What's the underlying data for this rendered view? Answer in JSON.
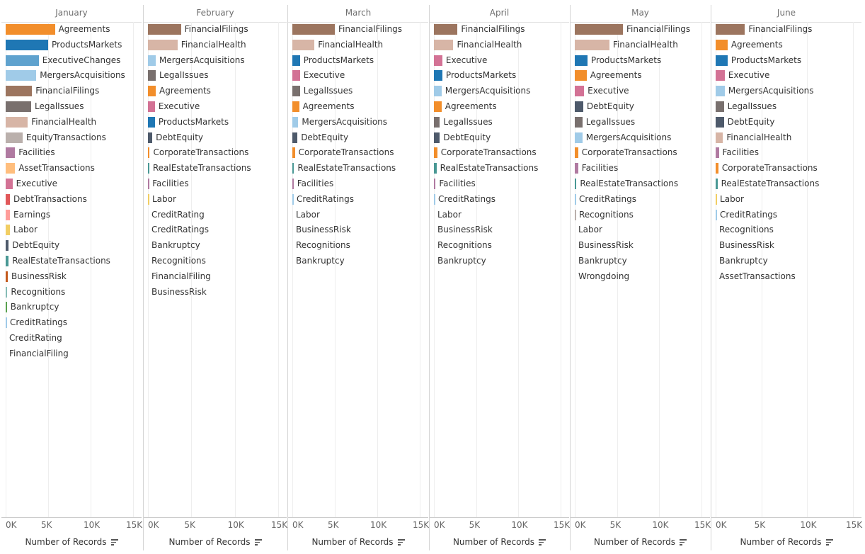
{
  "chart_data": {
    "type": "bar",
    "orientation": "horizontal",
    "xlabel": "Number of Records",
    "xlim": [
      0,
      15000
    ],
    "xticks": [
      "0K",
      "5K",
      "10K",
      "15K"
    ],
    "grid": true,
    "panels": [
      {
        "title": "January",
        "bars": [
          {
            "label": "Agreements",
            "value": 5800,
            "color": "#f28e2b"
          },
          {
            "label": "ProductsMarkets",
            "value": 5000,
            "color": "#1f77b4"
          },
          {
            "label": "ExecutiveChanges",
            "value": 3900,
            "color": "#5fa2ce"
          },
          {
            "label": "MergersAcquisitions",
            "value": 3600,
            "color": "#a0cbe8"
          },
          {
            "label": "FinancialFilings",
            "value": 3100,
            "color": "#9c755f"
          },
          {
            "label": "LegalIssues",
            "value": 3000,
            "color": "#79706e"
          },
          {
            "label": "FinancialHealth",
            "value": 2600,
            "color": "#d7b5a6"
          },
          {
            "label": "EquityTransactions",
            "value": 2000,
            "color": "#bab0ac"
          },
          {
            "label": "Facilities",
            "value": 1100,
            "color": "#b07aa1"
          },
          {
            "label": "AssetTransactions",
            "value": 1100,
            "color": "#ffbe7d"
          },
          {
            "label": "Executive",
            "value": 800,
            "color": "#d37295"
          },
          {
            "label": "DebtTransactions",
            "value": 500,
            "color": "#e15759"
          },
          {
            "label": "Earnings",
            "value": 500,
            "color": "#ff9d9a"
          },
          {
            "label": "Labor",
            "value": 500,
            "color": "#f1ce63"
          },
          {
            "label": "DebtEquity",
            "value": 350,
            "color": "#4e5a6b"
          },
          {
            "label": "RealEstateTransactions",
            "value": 350,
            "color": "#499894"
          },
          {
            "label": "BusinessRisk",
            "value": 250,
            "color": "#c35a1d"
          },
          {
            "label": "Recognitions",
            "value": 200,
            "color": "#86bcb6"
          },
          {
            "label": "Bankruptcy",
            "value": 150,
            "color": "#59a14f"
          },
          {
            "label": "CreditRatings",
            "value": 80,
            "color": "#a0cbe8"
          },
          {
            "label": "CreditRating",
            "value": 0,
            "color": "#bab0ac"
          },
          {
            "label": "FinancialFiling",
            "value": 0,
            "color": "#bab0ac"
          }
        ]
      },
      {
        "title": "February",
        "bars": [
          {
            "label": "FinancialFilings",
            "value": 3800,
            "color": "#9c755f"
          },
          {
            "label": "FinancialHealth",
            "value": 3400,
            "color": "#d7b5a6"
          },
          {
            "label": "MergersAcquisitions",
            "value": 900,
            "color": "#a0cbe8"
          },
          {
            "label": "LegalIssues",
            "value": 900,
            "color": "#79706e"
          },
          {
            "label": "Agreements",
            "value": 900,
            "color": "#f28e2b"
          },
          {
            "label": "Executive",
            "value": 800,
            "color": "#d37295"
          },
          {
            "label": "ProductsMarkets",
            "value": 800,
            "color": "#1f77b4"
          },
          {
            "label": "DebtEquity",
            "value": 500,
            "color": "#4e5a6b"
          },
          {
            "label": "CorporateTransactions",
            "value": 200,
            "color": "#f28e2b"
          },
          {
            "label": "RealEstateTransactions",
            "value": 150,
            "color": "#499894"
          },
          {
            "label": "Facilities",
            "value": 100,
            "color": "#b07aa1"
          },
          {
            "label": "Labor",
            "value": 80,
            "color": "#f1ce63"
          },
          {
            "label": "CreditRating",
            "value": 0,
            "color": "#bab0ac"
          },
          {
            "label": "CreditRatings",
            "value": 0,
            "color": "#bab0ac"
          },
          {
            "label": "Bankruptcy",
            "value": 0,
            "color": "#bab0ac"
          },
          {
            "label": "Recognitions",
            "value": 0,
            "color": "#bab0ac"
          },
          {
            "label": "FinancialFiling",
            "value": 0,
            "color": "#bab0ac"
          },
          {
            "label": "BusinessRisk",
            "value": 0,
            "color": "#bab0ac"
          }
        ]
      },
      {
        "title": "March",
        "bars": [
          {
            "label": "FinancialFilings",
            "value": 5000,
            "color": "#9c755f"
          },
          {
            "label": "FinancialHealth",
            "value": 2600,
            "color": "#d7b5a6"
          },
          {
            "label": "ProductsMarkets",
            "value": 900,
            "color": "#1f77b4"
          },
          {
            "label": "Executive",
            "value": 900,
            "color": "#d37295"
          },
          {
            "label": "LegalIssues",
            "value": 900,
            "color": "#79706e"
          },
          {
            "label": "Agreements",
            "value": 800,
            "color": "#f28e2b"
          },
          {
            "label": "MergersAcquisitions",
            "value": 700,
            "color": "#a0cbe8"
          },
          {
            "label": "DebtEquity",
            "value": 600,
            "color": "#4e5a6b"
          },
          {
            "label": "CorporateTransactions",
            "value": 300,
            "color": "#f28e2b"
          },
          {
            "label": "RealEstateTransactions",
            "value": 200,
            "color": "#499894"
          },
          {
            "label": "Facilities",
            "value": 150,
            "color": "#b07aa1"
          },
          {
            "label": "CreditRatings",
            "value": 80,
            "color": "#a0cbe8"
          },
          {
            "label": "Labor",
            "value": 0,
            "color": "#bab0ac"
          },
          {
            "label": "BusinessRisk",
            "value": 0,
            "color": "#bab0ac"
          },
          {
            "label": "Recognitions",
            "value": 0,
            "color": "#bab0ac"
          },
          {
            "label": "Bankruptcy",
            "value": 0,
            "color": "#bab0ac"
          }
        ]
      },
      {
        "title": "April",
        "bars": [
          {
            "label": "FinancialFilings",
            "value": 2800,
            "color": "#9c755f"
          },
          {
            "label": "FinancialHealth",
            "value": 2300,
            "color": "#d7b5a6"
          },
          {
            "label": "Executive",
            "value": 1000,
            "color": "#d37295"
          },
          {
            "label": "ProductsMarkets",
            "value": 1000,
            "color": "#1f77b4"
          },
          {
            "label": "MergersAcquisitions",
            "value": 900,
            "color": "#a0cbe8"
          },
          {
            "label": "Agreements",
            "value": 900,
            "color": "#f28e2b"
          },
          {
            "label": "LegalIssues",
            "value": 700,
            "color": "#79706e"
          },
          {
            "label": "DebtEquity",
            "value": 700,
            "color": "#4e5a6b"
          },
          {
            "label": "CorporateTransactions",
            "value": 400,
            "color": "#f28e2b"
          },
          {
            "label": "RealEstateTransactions",
            "value": 300,
            "color": "#499894"
          },
          {
            "label": "Facilities",
            "value": 200,
            "color": "#b07aa1"
          },
          {
            "label": "CreditRatings",
            "value": 80,
            "color": "#a0cbe8"
          },
          {
            "label": "Labor",
            "value": 0,
            "color": "#bab0ac"
          },
          {
            "label": "BusinessRisk",
            "value": 0,
            "color": "#bab0ac"
          },
          {
            "label": "Recognitions",
            "value": 0,
            "color": "#bab0ac"
          },
          {
            "label": "Bankruptcy",
            "value": 0,
            "color": "#bab0ac"
          }
        ]
      },
      {
        "title": "May",
        "bars": [
          {
            "label": "FinancialFilings",
            "value": 5700,
            "color": "#9c755f"
          },
          {
            "label": "FinancialHealth",
            "value": 4100,
            "color": "#d7b5a6"
          },
          {
            "label": "ProductsMarkets",
            "value": 1500,
            "color": "#1f77b4"
          },
          {
            "label": "Agreements",
            "value": 1400,
            "color": "#f28e2b"
          },
          {
            "label": "Executive",
            "value": 1100,
            "color": "#d37295"
          },
          {
            "label": "DebtEquity",
            "value": 1000,
            "color": "#4e5a6b"
          },
          {
            "label": "LegalIssues",
            "value": 900,
            "color": "#79706e"
          },
          {
            "label": "MergersAcquisitions",
            "value": 900,
            "color": "#a0cbe8"
          },
          {
            "label": "CorporateTransactions",
            "value": 400,
            "color": "#f28e2b"
          },
          {
            "label": "Facilities",
            "value": 400,
            "color": "#b07aa1"
          },
          {
            "label": "RealEstateTransactions",
            "value": 200,
            "color": "#499894"
          },
          {
            "label": "CreditRatings",
            "value": 80,
            "color": "#a0cbe8"
          },
          {
            "label": "Recognitions",
            "value": 80,
            "color": "#bab0ac"
          },
          {
            "label": "Labor",
            "value": 0,
            "color": "#bab0ac"
          },
          {
            "label": "BusinessRisk",
            "value": 0,
            "color": "#bab0ac"
          },
          {
            "label": "Bankruptcy",
            "value": 0,
            "color": "#bab0ac"
          },
          {
            "label": "Wrongdoing",
            "value": 0,
            "color": "#bab0ac"
          }
        ]
      },
      {
        "title": "June",
        "bars": [
          {
            "label": "FinancialFilings",
            "value": 3200,
            "color": "#9c755f"
          },
          {
            "label": "Agreements",
            "value": 1300,
            "color": "#f28e2b"
          },
          {
            "label": "ProductsMarkets",
            "value": 1300,
            "color": "#1f77b4"
          },
          {
            "label": "Executive",
            "value": 1000,
            "color": "#d37295"
          },
          {
            "label": "MergersAcquisitions",
            "value": 1000,
            "color": "#a0cbe8"
          },
          {
            "label": "LegalIssues",
            "value": 900,
            "color": "#79706e"
          },
          {
            "label": "DebtEquity",
            "value": 900,
            "color": "#4e5a6b"
          },
          {
            "label": "FinancialHealth",
            "value": 800,
            "color": "#d7b5a6"
          },
          {
            "label": "Facilities",
            "value": 350,
            "color": "#b07aa1"
          },
          {
            "label": "CorporateTransactions",
            "value": 300,
            "color": "#f28e2b"
          },
          {
            "label": "RealEstateTransactions",
            "value": 200,
            "color": "#499894"
          },
          {
            "label": "Labor",
            "value": 80,
            "color": "#f1ce63"
          },
          {
            "label": "CreditRatings",
            "value": 80,
            "color": "#a0cbe8"
          },
          {
            "label": "Recognitions",
            "value": 0,
            "color": "#bab0ac"
          },
          {
            "label": "BusinessRisk",
            "value": 0,
            "color": "#bab0ac"
          },
          {
            "label": "Bankruptcy",
            "value": 0,
            "color": "#bab0ac"
          },
          {
            "label": "AssetTransactions",
            "value": 0,
            "color": "#bab0ac"
          }
        ]
      }
    ]
  }
}
